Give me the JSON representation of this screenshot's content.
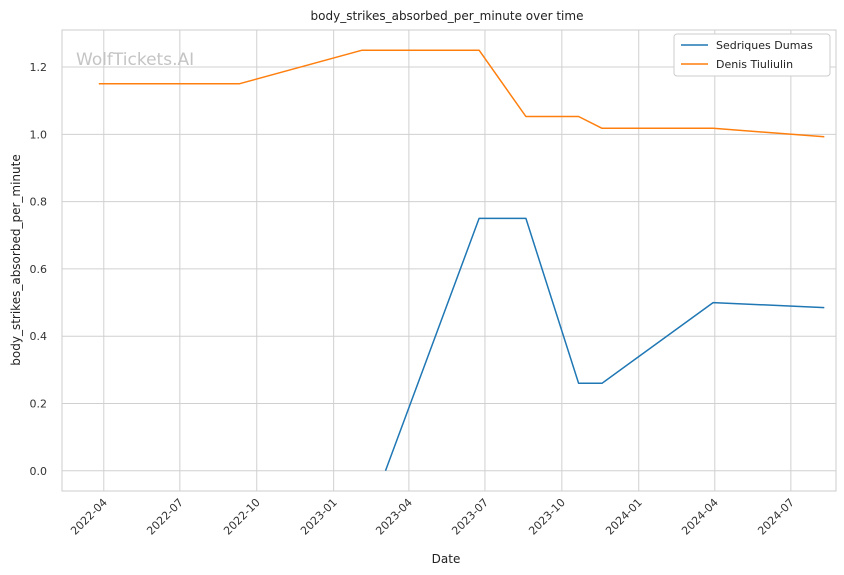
{
  "watermark": "WolfTickets.AI",
  "chart_data": {
    "type": "line",
    "title": "body_strikes_absorbed_per_minute over time",
    "xlabel": "Date",
    "ylabel": "body_strikes_absorbed_per_minute",
    "x_type": "date",
    "xlim": [
      "2022-02-10",
      "2024-08-24"
    ],
    "ylim": [
      -0.06,
      1.31
    ],
    "x_ticks": [
      "2022-04-01",
      "2022-07-01",
      "2022-10-01",
      "2023-01-01",
      "2023-04-01",
      "2023-07-01",
      "2023-10-01",
      "2024-01-01",
      "2024-04-01",
      "2024-07-01"
    ],
    "x_tick_labels": [
      "2022-04",
      "2022-07",
      "2022-10",
      "2023-01",
      "2023-04",
      "2023-07",
      "2023-10",
      "2024-01",
      "2024-04",
      "2024-07"
    ],
    "y_ticks": [
      0.0,
      0.2,
      0.4,
      0.6,
      0.8,
      1.0,
      1.2
    ],
    "y_tick_labels": [
      "0.0",
      "0.2",
      "0.4",
      "0.6",
      "0.8",
      "1.0",
      "1.2"
    ],
    "grid": true,
    "legend_position": "top-right",
    "series": [
      {
        "name": "Sedriques Dumas",
        "color": "#1f77b4",
        "points": [
          {
            "x": "2023-03-04",
            "y": 0.0
          },
          {
            "x": "2023-06-24",
            "y": 0.75
          },
          {
            "x": "2023-08-19",
            "y": 0.75
          },
          {
            "x": "2023-10-21",
            "y": 0.26
          },
          {
            "x": "2023-11-18",
            "y": 0.26
          },
          {
            "x": "2024-03-30",
            "y": 0.5
          },
          {
            "x": "2024-08-10",
            "y": 0.485
          }
        ]
      },
      {
        "name": "Denis Tiuliulin",
        "color": "#ff7f0e",
        "points": [
          {
            "x": "2022-03-26",
            "y": 1.15
          },
          {
            "x": "2022-09-10",
            "y": 1.15
          },
          {
            "x": "2023-02-04",
            "y": 1.25
          },
          {
            "x": "2023-06-24",
            "y": 1.25
          },
          {
            "x": "2023-08-19",
            "y": 1.053
          },
          {
            "x": "2023-10-21",
            "y": 1.053
          },
          {
            "x": "2023-11-18",
            "y": 1.018
          },
          {
            "x": "2024-03-30",
            "y": 1.018
          },
          {
            "x": "2024-08-10",
            "y": 0.993
          }
        ]
      }
    ]
  }
}
